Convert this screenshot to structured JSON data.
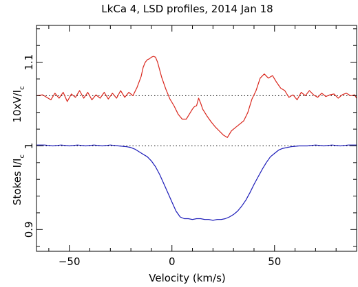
{
  "chart_data": {
    "type": "line",
    "title": "LkCa 4, LSD profiles, 2014 Jan 18",
    "xlabel": "Velocity (km/s)",
    "ylabel_top": "10xV/I",
    "ylabel_top_sub": "c",
    "ylabel_bottom": "Stokes I/I",
    "ylabel_bottom_sub": "c",
    "xlim": [
      -66,
      90
    ],
    "ylim": [
      0.874,
      1.144
    ],
    "x_ticks": [
      -50,
      0,
      50
    ],
    "x_tick_labels": [
      "−50",
      "0",
      "50"
    ],
    "y_ticks": [
      0.9,
      1,
      1.1
    ],
    "y_tick_labels": [
      "0.9",
      "1",
      "1.1"
    ],
    "reference_lines": [
      1.06,
      1.0
    ],
    "grid": false,
    "legend": "none",
    "series": [
      {
        "color": "#d9261c",
        "x": [
          -66,
          -63,
          -61,
          -59,
          -57,
          -55,
          -53,
          -51,
          -49,
          -47,
          -45,
          -43,
          -41,
          -39,
          -37,
          -35,
          -33,
          -31,
          -29,
          -27,
          -25,
          -23,
          -21,
          -19,
          -17,
          -15,
          -14,
          -13,
          -12,
          -11,
          -10,
          -9,
          -8,
          -7,
          -5,
          -3,
          -1,
          1,
          3,
          5,
          7,
          8,
          9,
          10,
          11,
          12,
          13,
          14,
          15,
          17,
          19,
          21,
          23,
          25,
          27,
          29,
          31,
          33,
          35,
          37,
          39,
          41,
          43,
          45,
          47,
          49,
          51,
          53,
          55,
          57,
          59,
          61,
          63,
          65,
          67,
          69,
          71,
          73,
          75,
          77,
          79,
          81,
          83,
          85,
          87,
          89,
          90
        ],
        "values": [
          1.06,
          1.061,
          1.058,
          1.055,
          1.063,
          1.057,
          1.064,
          1.053,
          1.062,
          1.058,
          1.066,
          1.057,
          1.064,
          1.055,
          1.061,
          1.057,
          1.064,
          1.056,
          1.063,
          1.057,
          1.066,
          1.058,
          1.064,
          1.06,
          1.07,
          1.083,
          1.094,
          1.1,
          1.103,
          1.104,
          1.106,
          1.107,
          1.106,
          1.1,
          1.082,
          1.068,
          1.056,
          1.048,
          1.038,
          1.032,
          1.032,
          1.036,
          1.04,
          1.044,
          1.047,
          1.048,
          1.057,
          1.051,
          1.044,
          1.036,
          1.029,
          1.023,
          1.018,
          1.013,
          1.01,
          1.018,
          1.022,
          1.026,
          1.03,
          1.04,
          1.056,
          1.066,
          1.081,
          1.086,
          1.081,
          1.084,
          1.076,
          1.069,
          1.066,
          1.058,
          1.061,
          1.055,
          1.064,
          1.06,
          1.066,
          1.061,
          1.058,
          1.063,
          1.059,
          1.061,
          1.062,
          1.057,
          1.061,
          1.063,
          1.06,
          1.061,
          1.057
        ]
      },
      {
        "color": "#1a1ab8",
        "x": [
          -66,
          -62,
          -58,
          -54,
          -50,
          -46,
          -42,
          -38,
          -34,
          -30,
          -26,
          -22,
          -20,
          -18,
          -16,
          -14,
          -12,
          -10,
          -8,
          -6,
          -4,
          -2,
          0,
          2,
          4,
          6,
          8,
          10,
          12,
          14,
          16,
          18,
          20,
          22,
          24,
          26,
          28,
          30,
          32,
          34,
          36,
          38,
          40,
          42,
          44,
          46,
          48,
          50,
          52,
          54,
          58,
          62,
          66,
          70,
          74,
          78,
          82,
          86,
          90
        ],
        "values": [
          1.001,
          1.001,
          1.0,
          1.001,
          1.0,
          1.001,
          1.0,
          1.001,
          1.0,
          1.001,
          1.0,
          0.999,
          0.998,
          0.996,
          0.993,
          0.99,
          0.987,
          0.982,
          0.975,
          0.966,
          0.955,
          0.944,
          0.933,
          0.922,
          0.915,
          0.913,
          0.913,
          0.912,
          0.913,
          0.913,
          0.912,
          0.912,
          0.911,
          0.912,
          0.912,
          0.913,
          0.915,
          0.918,
          0.922,
          0.928,
          0.935,
          0.944,
          0.954,
          0.963,
          0.972,
          0.98,
          0.987,
          0.991,
          0.995,
          0.997,
          0.999,
          1.0,
          1.0,
          1.001,
          1.0,
          1.001,
          1.0,
          1.001,
          1.001
        ]
      }
    ]
  }
}
